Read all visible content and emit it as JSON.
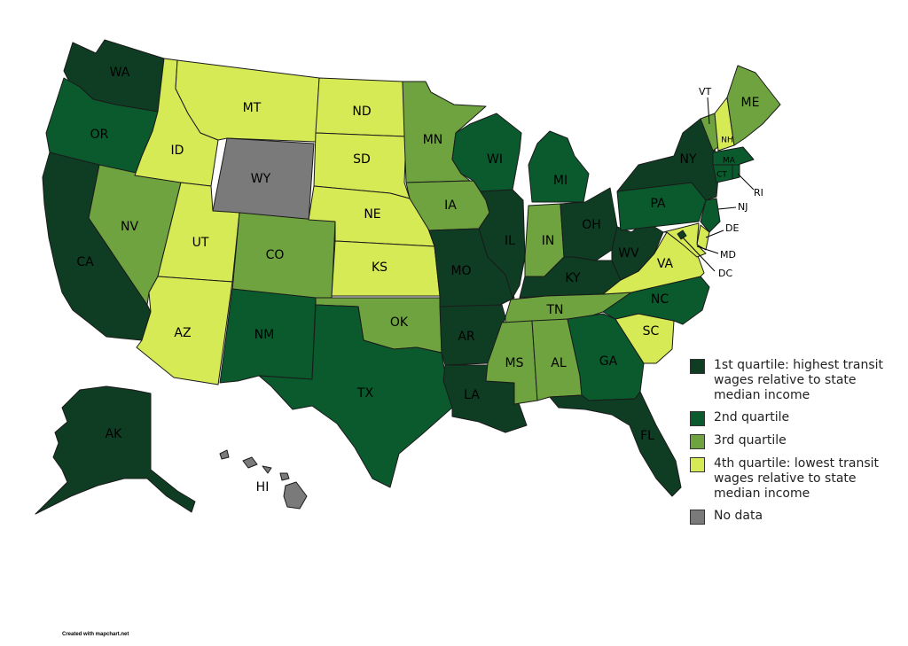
{
  "colors": {
    "q1": "#0f3d23",
    "q2": "#0a5a2e",
    "q3": "#6ea33f",
    "q4": "#d6ea56",
    "nodata": "#7a7a7a"
  },
  "legend": [
    {
      "key": "q1",
      "text": "1st quartile: highest transit wages relative to state median income"
    },
    {
      "key": "q2",
      "text": "2nd quartile"
    },
    {
      "key": "q3",
      "text": "3rd quartile"
    },
    {
      "key": "q4",
      "text": "4th quartile: lowest transit wages relative to state median income"
    },
    {
      "key": "nodata",
      "text": "No data"
    }
  ],
  "states": {
    "WA": {
      "label": "WA",
      "q": "q1"
    },
    "OR": {
      "label": "OR",
      "q": "q2"
    },
    "CA": {
      "label": "CA",
      "q": "q1"
    },
    "NV": {
      "label": "NV",
      "q": "q3"
    },
    "ID": {
      "label": "ID",
      "q": "q4"
    },
    "MT": {
      "label": "MT",
      "q": "q4"
    },
    "WY": {
      "label": "WY",
      "q": "nodata"
    },
    "UT": {
      "label": "UT",
      "q": "q4"
    },
    "AZ": {
      "label": "AZ",
      "q": "q4"
    },
    "CO": {
      "label": "CO",
      "q": "q3"
    },
    "NM": {
      "label": "NM",
      "q": "q2"
    },
    "ND": {
      "label": "ND",
      "q": "q4"
    },
    "SD": {
      "label": "SD",
      "q": "q4"
    },
    "NE": {
      "label": "NE",
      "q": "q4"
    },
    "KS": {
      "label": "KS",
      "q": "q4"
    },
    "OK": {
      "label": "OK",
      "q": "q3"
    },
    "TX": {
      "label": "TX",
      "q": "q2"
    },
    "MN": {
      "label": "MN",
      "q": "q3"
    },
    "IA": {
      "label": "IA",
      "q": "q3"
    },
    "MO": {
      "label": "MO",
      "q": "q1"
    },
    "AR": {
      "label": "AR",
      "q": "q1"
    },
    "LA": {
      "label": "LA",
      "q": "q1"
    },
    "WI": {
      "label": "WI",
      "q": "q2"
    },
    "IL": {
      "label": "IL",
      "q": "q1"
    },
    "MI": {
      "label": "MI",
      "q": "q2"
    },
    "IN": {
      "label": "IN",
      "q": "q3"
    },
    "OH": {
      "label": "OH",
      "q": "q1"
    },
    "KY": {
      "label": "KY",
      "q": "q1"
    },
    "TN": {
      "label": "TN",
      "q": "q3"
    },
    "MS": {
      "label": "MS",
      "q": "q3"
    },
    "AL": {
      "label": "AL",
      "q": "q3"
    },
    "GA": {
      "label": "GA",
      "q": "q2"
    },
    "FL": {
      "label": "FL",
      "q": "q1"
    },
    "SC": {
      "label": "SC",
      "q": "q4"
    },
    "NC": {
      "label": "NC",
      "q": "q2"
    },
    "VA": {
      "label": "VA",
      "q": "q4"
    },
    "WV": {
      "label": "WV",
      "q": "q1"
    },
    "PA": {
      "label": "PA",
      "q": "q2"
    },
    "NY": {
      "label": "NY",
      "q": "q1"
    },
    "VT": {
      "label": "VT",
      "q": "q3"
    },
    "NH": {
      "label": "NH",
      "q": "q4"
    },
    "ME": {
      "label": "ME",
      "q": "q3"
    },
    "MA": {
      "label": "MA",
      "q": "q2"
    },
    "CT": {
      "label": "CT",
      "q": "q2"
    },
    "RI": {
      "label": "RI",
      "q": "q2"
    },
    "NJ": {
      "label": "NJ",
      "q": "q2"
    },
    "DE": {
      "label": "DE",
      "q": "q4"
    },
    "MD": {
      "label": "MD",
      "q": "q4"
    },
    "DC": {
      "label": "DC",
      "q": "q1"
    },
    "AK": {
      "label": "AK",
      "q": "q1"
    },
    "HI": {
      "label": "HI",
      "q": "nodata"
    }
  },
  "credit": "Created with mapchart.net"
}
